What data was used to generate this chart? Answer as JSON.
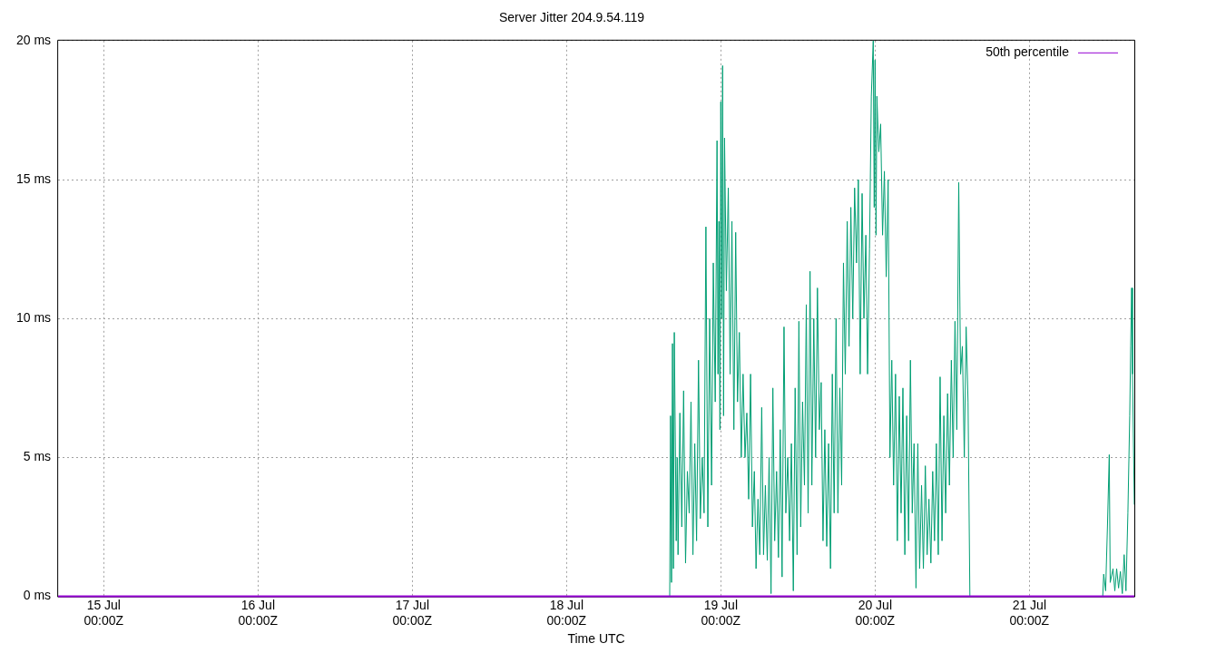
{
  "chart_data": {
    "type": "line",
    "title": "Server Jitter 204.9.54.119",
    "xlabel": "Time UTC",
    "xlim": [
      "--07-14T16:55",
      "--07-21T16:20"
    ],
    "xticks": [
      {
        "value": "--07-15T00:00",
        "label": "15 Jul\n00:00Z"
      },
      {
        "value": "--07-16T00:00",
        "label": "16 Jul\n00:00Z"
      },
      {
        "value": "--07-17T00:00",
        "label": "17 Jul\n00:00Z"
      },
      {
        "value": "--07-18T00:00",
        "label": "18 Jul\n00:00Z"
      },
      {
        "value": "--07-19T00:00",
        "label": "19 Jul\n00:00Z"
      },
      {
        "value": "--07-20T00:00",
        "label": "20 Jul\n00:00Z"
      },
      {
        "value": "--07-21T00:00",
        "label": "21 Jul\n00:00Z"
      }
    ],
    "ylim": [
      0,
      20
    ],
    "yticks": [
      {
        "value": 0,
        "label": "0 ms"
      },
      {
        "value": 5,
        "label": "5 ms"
      },
      {
        "value": 10,
        "label": "10 ms"
      },
      {
        "value": 15,
        "label": "15 ms"
      },
      {
        "value": 20,
        "label": "20 ms"
      }
    ],
    "grid": true,
    "legend": "top right",
    "marker": "none",
    "line_style": "solid",
    "series": [
      {
        "name": "50th percentile",
        "color": "#9400d3",
        "x": [
          "--07-14T16:55",
          "--07-21T16:20"
        ],
        "values": [
          0,
          0
        ]
      },
      {
        "color": "#009e73",
        "x": [
          "--07-14T16:55",
          "--07-18T16:03",
          "--07-18T16:11",
          "--07-18T16:20",
          "--07-18T16:29",
          "--07-18T16:38",
          "--07-18T16:46",
          "--07-18T17:04",
          "--07-18T17:13",
          "--07-18T17:21",
          "--07-18T17:38",
          "--07-18T17:56",
          "--07-18T18:13",
          "--07-18T18:31",
          "--07-18T18:48",
          "--07-18T19:05",
          "--07-18T19:22",
          "--07-18T19:40",
          "--07-18T19:57",
          "--07-18T20:14",
          "--07-18T20:32",
          "--07-18T20:49",
          "--07-18T21:07",
          "--07-18T21:24",
          "--07-18T21:41",
          "--07-18T21:59",
          "--07-18T22:16",
          "--07-18T22:34",
          "--07-18T22:50",
          "--07-18T23:08",
          "--07-18T23:25",
          "--07-18T23:34",
          "--07-18T23:43",
          "--07-18T23:52",
          "--07-19T00:00",
          "--07-19T00:09",
          "--07-19T00:17",
          "--07-19T00:26",
          "--07-19T00:35",
          "--07-19T00:52",
          "--07-19T01:10",
          "--07-19T01:27",
          "--07-19T01:44",
          "--07-19T02:02",
          "--07-19T02:19",
          "--07-19T02:36",
          "--07-19T02:53",
          "--07-19T03:11",
          "--07-19T03:28",
          "--07-19T03:46",
          "--07-19T04:03",
          "--07-19T04:20",
          "--07-19T04:38",
          "--07-19T04:55",
          "--07-19T05:13",
          "--07-19T05:29",
          "--07-19T05:47",
          "--07-19T06:04",
          "--07-19T06:22",
          "--07-19T06:39",
          "--07-19T06:56",
          "--07-19T07:14",
          "--07-19T07:31",
          "--07-19T07:49",
          "--07-19T08:06",
          "--07-19T08:23",
          "--07-19T08:41",
          "--07-19T08:58",
          "--07-19T09:15",
          "--07-19T09:32",
          "--07-19T09:50",
          "--07-19T10:07",
          "--07-19T10:25",
          "--07-19T10:42",
          "--07-19T10:59",
          "--07-19T11:17",
          "--07-19T11:34",
          "--07-19T11:52",
          "--07-19T12:09",
          "--07-19T12:26",
          "--07-19T12:43",
          "--07-19T13:01",
          "--07-19T13:18",
          "--07-19T13:35",
          "--07-19T13:53",
          "--07-19T14:10",
          "--07-19T14:28",
          "--07-19T14:45",
          "--07-19T15:02",
          "--07-19T15:20",
          "--07-19T15:37",
          "--07-19T15:54",
          "--07-19T16:11",
          "--07-19T16:29",
          "--07-19T16:46",
          "--07-19T17:04",
          "--07-19T17:21",
          "--07-19T17:38",
          "--07-19T17:56",
          "--07-19T18:13",
          "--07-19T18:31",
          "--07-19T18:48",
          "--07-19T19:05",
          "--07-19T19:22",
          "--07-19T19:40",
          "--07-19T19:57",
          "--07-19T20:14",
          "--07-19T20:32",
          "--07-19T20:49",
          "--07-19T21:07",
          "--07-19T21:24",
          "--07-19T21:41",
          "--07-19T21:59",
          "--07-19T22:16",
          "--07-19T22:34",
          "--07-19T22:50",
          "--07-19T23:08",
          "--07-19T23:25",
          "--07-19T23:43",
          "--07-19T23:52",
          "--07-20T00:00",
          "--07-20T00:09",
          "--07-20T00:17",
          "--07-20T00:35",
          "--07-20T00:52",
          "--07-20T01:10",
          "--07-20T01:27",
          "--07-20T01:44",
          "--07-20T02:02",
          "--07-20T02:19",
          "--07-20T02:36",
          "--07-20T02:53",
          "--07-20T03:11",
          "--07-20T03:28",
          "--07-20T03:46",
          "--07-20T04:03",
          "--07-20T04:20",
          "--07-20T04:38",
          "--07-20T04:55",
          "--07-20T05:13",
          "--07-20T05:30",
          "--07-20T05:47",
          "--07-20T06:04",
          "--07-20T06:22",
          "--07-20T06:39",
          "--07-20T06:56",
          "--07-20T07:14",
          "--07-20T07:31",
          "--07-20T07:49",
          "--07-20T08:06",
          "--07-20T08:23",
          "--07-20T08:41",
          "--07-20T08:58",
          "--07-20T09:15",
          "--07-20T09:32",
          "--07-20T09:50",
          "--07-20T10:07",
          "--07-20T10:25",
          "--07-20T10:42",
          "--07-20T10:59",
          "--07-20T11:17",
          "--07-20T11:34",
          "--07-20T11:52",
          "--07-20T12:09",
          "--07-20T12:26",
          "--07-20T12:43",
          "--07-20T13:01",
          "--07-20T13:18",
          "--07-20T13:35",
          "--07-20T13:53",
          "--07-20T14:10",
          "--07-20T14:28",
          "--07-20T14:45",
          "--07-21T11:25",
          "--07-21T11:34",
          "--07-21T11:52",
          "--07-21T12:09",
          "--07-21T12:26",
          "--07-21T12:35",
          "--07-21T13:01",
          "--07-21T13:18",
          "--07-21T13:35",
          "--07-21T13:53",
          "--07-21T14:10",
          "--07-21T14:28",
          "--07-21T14:45",
          "--07-21T15:02",
          "--07-21T15:20",
          "--07-21T15:37",
          "--07-21T15:46",
          "--07-21T15:55",
          "--07-21T16:03",
          "--07-21T16:20"
        ],
        "values": [
          0,
          0,
          6.5,
          0.5,
          9.1,
          1.0,
          9.5,
          2,
          5,
          1.5,
          6.6,
          2.5,
          7.4,
          1.2,
          4.5,
          3,
          7,
          1.5,
          5.5,
          2,
          8.5,
          2.8,
          5,
          3,
          13.3,
          2.5,
          10,
          4,
          12,
          7,
          16.4,
          8,
          13.5,
          6,
          17.8,
          10,
          19.1,
          6.5,
          16.5,
          11,
          14.7,
          8,
          13.5,
          6,
          13.1,
          7,
          9.5,
          5,
          8,
          5,
          6.6,
          3.5,
          8,
          2.5,
          4.5,
          1,
          3.5,
          1.5,
          6.8,
          1.5,
          4,
          1.3,
          5,
          0.1,
          7.5,
          2,
          4.5,
          1.4,
          6,
          0.7,
          9.7,
          3,
          5,
          2,
          5.5,
          0.2,
          7.5,
          1.5,
          9.9,
          2.5,
          7,
          4,
          10.5,
          3,
          11.7,
          4,
          10,
          5,
          11.1,
          6,
          7.7,
          2,
          6,
          1.8,
          5.5,
          1,
          8,
          3,
          10,
          3,
          7.5,
          4,
          12,
          8,
          13.5,
          9,
          14,
          10,
          14.7,
          12,
          15,
          8,
          14.5,
          10,
          13,
          8,
          12.5,
          18,
          20,
          14,
          19.3,
          13,
          18,
          16,
          17,
          13,
          15.3,
          11.5,
          15,
          5,
          8.5,
          4,
          8,
          2,
          7.2,
          3,
          7.5,
          1.5,
          6.5,
          2,
          8.5,
          3,
          5.5,
          0.3,
          5.5,
          1,
          4,
          1,
          4.7,
          1.5,
          3.5,
          1.2,
          4.5,
          2,
          5.5,
          1.5,
          7.9,
          2,
          6.5,
          3,
          7.3,
          4,
          8.5,
          5,
          9.9,
          6,
          14.9,
          8,
          9,
          5,
          9.7,
          7,
          0,
          0,
          0.8,
          0.2,
          2.5,
          5.1,
          0.5,
          1,
          0.2,
          1.0,
          0.3,
          0.9,
          0.1,
          1.5,
          0.2,
          3,
          6.5,
          9,
          11.1,
          8,
          3.3
        ]
      }
    ]
  }
}
